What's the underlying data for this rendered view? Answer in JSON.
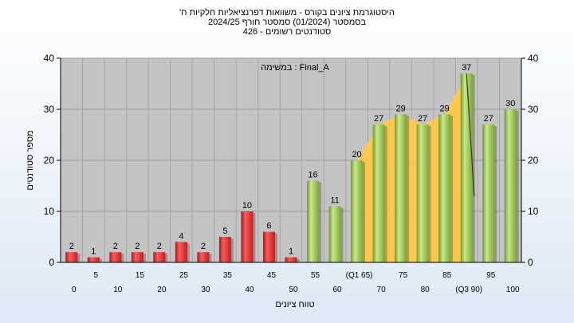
{
  "chart_title": {
    "line1": "'היסטוגרמת ציונים בקורס - משוואות דפרנציאליות חלקיות ח",
    "line2": "בסמסטר  (01/2024)  סמסטר חורף  2024/25",
    "line3": "סטודנטים רשומים - 426"
  },
  "filter_label": "במשימה : Final_A",
  "colors": {
    "plot_bg": "#c4c4c4",
    "red_bar": "#e03a3a",
    "green_bar": "#9cc653",
    "area_fill": "#ffc948",
    "trend_line": "#333333"
  },
  "chart_data": {
    "type": "bar",
    "ylabel": "מספר סטודנטים",
    "xlabel": "טווח ציונים",
    "ylim": [
      0,
      40
    ],
    "yticks": [
      0,
      10,
      20,
      30,
      40
    ],
    "grid": true,
    "categories": [
      "0",
      "5",
      "10",
      "15",
      "20",
      "25",
      "30",
      "35",
      "40",
      "45",
      "50",
      "55",
      "60",
      "65",
      "70",
      "75",
      "80",
      "85",
      "90",
      "95",
      "100"
    ],
    "tick_labels": [
      "0",
      "5",
      "10",
      "15",
      "20",
      "25",
      "30",
      "35",
      "40",
      "45",
      "50",
      "55",
      "60",
      "(Q1 65)",
      "70",
      "75",
      "80",
      "85",
      "(Q3 90)",
      "95",
      "100"
    ],
    "values": [
      2,
      1,
      2,
      2,
      2,
      4,
      2,
      5,
      10,
      6,
      1,
      16,
      11,
      20,
      27,
      29,
      27,
      29,
      37,
      27,
      30
    ],
    "data_labels": [
      "2",
      "1",
      "2",
      "2",
      "2",
      "4",
      "2",
      "5",
      "10",
      "6",
      "1",
      "16",
      "11",
      "20",
      "27",
      "29",
      "27",
      "29",
      "37",
      "27",
      "30"
    ],
    "bar_colors": [
      "red",
      "red",
      "red",
      "red",
      "red",
      "red",
      "red",
      "red",
      "red",
      "red",
      "red",
      "green",
      "green",
      "green",
      "green",
      "green",
      "green",
      "green",
      "green",
      "green",
      "green"
    ],
    "highlight_range": [
      "65",
      "90"
    ]
  }
}
